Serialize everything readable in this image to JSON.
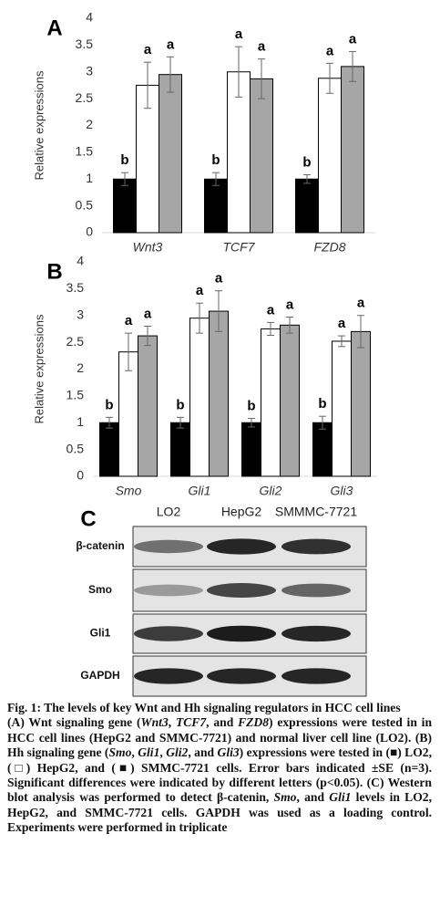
{
  "chart_data": [
    {
      "type": "bar",
      "label": "A",
      "ylabel": "Relative expressions",
      "categories": [
        "Wnt3",
        "TCF7",
        "FZD8"
      ],
      "ylim": [
        0,
        4
      ],
      "yticks": [
        0,
        0.5,
        1,
        1.5,
        2,
        2.5,
        3,
        3.5,
        4
      ],
      "series": [
        {
          "color": "#000000",
          "values": [
            1,
            1,
            1
          ],
          "errors": [
            0.12,
            0.12,
            0.08
          ],
          "labels": [
            "b",
            "b",
            "b"
          ]
        },
        {
          "color": "#ffffff",
          "values": [
            2.75,
            3.0,
            2.88
          ],
          "errors": [
            0.43,
            0.47,
            0.28
          ],
          "labels": [
            "a",
            "a",
            "a"
          ]
        },
        {
          "color": "#a6a6a6",
          "values": [
            2.95,
            2.87,
            3.1
          ],
          "errors": [
            0.33,
            0.37,
            0.28
          ],
          "labels": [
            "a",
            "a",
            "a"
          ]
        }
      ]
    },
    {
      "type": "bar",
      "label": "B",
      "ylabel": "Relative expressions",
      "categories": [
        "Smo",
        "Gli1",
        "Gli2",
        "Gli3"
      ],
      "ylim": [
        0,
        4
      ],
      "yticks": [
        0,
        0.5,
        1,
        1.5,
        2,
        2.5,
        3,
        3.5,
        4
      ],
      "series": [
        {
          "color": "#000000",
          "values": [
            1,
            1,
            1,
            1
          ],
          "errors": [
            0.1,
            0.1,
            0.08,
            0.12
          ],
          "labels": [
            "b",
            "b",
            "b",
            "b"
          ]
        },
        {
          "color": "#ffffff",
          "values": [
            2.32,
            2.95,
            2.75,
            2.52
          ],
          "errors": [
            0.35,
            0.28,
            0.12,
            0.1
          ],
          "labels": [
            "a",
            "a",
            "a",
            "a"
          ]
        },
        {
          "color": "#a6a6a6",
          "values": [
            2.62,
            3.08,
            2.82,
            2.7
          ],
          "errors": [
            0.18,
            0.38,
            0.15,
            0.3
          ],
          "labels": [
            "a",
            "a",
            "a",
            "a"
          ]
        }
      ]
    }
  ],
  "blot": {
    "panel": "C",
    "lanes": [
      "LO2",
      "HepG2",
      "SMMMC-7721"
    ],
    "rows": [
      "β-catenin",
      "Smo",
      "Gli1",
      "GAPDH"
    ]
  },
  "caption": {
    "title": "Fig. 1: The levels of key Wnt and Hh signaling regulators in HCC cell lines",
    "body": [
      {
        "text": "(A) Wnt signaling gene ("
      },
      {
        "text": "Wnt3",
        "italic": true
      },
      {
        "text": ", "
      },
      {
        "text": "TCF7",
        "italic": true
      },
      {
        "text": ", and "
      },
      {
        "text": "FZD8",
        "italic": true
      },
      {
        "text": ") expressions were tested in in HCC cell lines (HepG2 and SMMC-7721) and normal liver cell line (LO2). (B) Hh signaling gene ("
      },
      {
        "text": "Smo",
        "italic": true
      },
      {
        "text": ", "
      },
      {
        "text": "Gli1",
        "italic": true
      },
      {
        "text": ", "
      },
      {
        "text": "Gli2",
        "italic": true
      },
      {
        "text": ", and "
      },
      {
        "text": "Gli3",
        "italic": true
      },
      {
        "text": ") expressions were tested in (■) LO2, (□) HepG2, and (■) SMMC-7721 cells. Error bars indicated ±SE (n=3). Significant differences were indicated by different letters (p<0.05). (C) Western blot analysis was performed to detect β-catenin, "
      },
      {
        "text": "Smo",
        "italic": true
      },
      {
        "text": ", and "
      },
      {
        "text": "Gli1",
        "italic": true
      },
      {
        "text": " levels in LO2, HepG2, and SMMC-7721 cells. GAPDH was used as a loading control. Experiments were performed in triplicate"
      }
    ]
  }
}
